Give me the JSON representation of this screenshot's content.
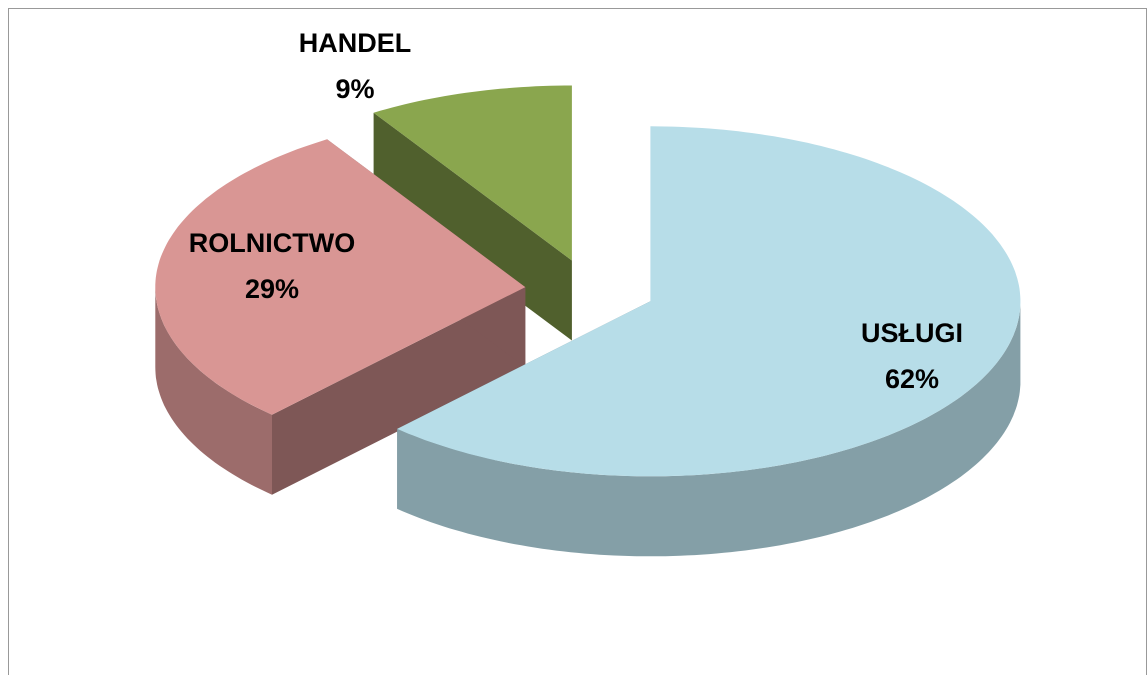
{
  "chart_data": {
    "type": "pie3d",
    "categories": [
      "USŁUGI",
      "ROLNICTWO",
      "HANDEL"
    ],
    "values": [
      62,
      29,
      9
    ],
    "value_labels": [
      "62%",
      "29%",
      "9%"
    ],
    "colors": [
      "#b7dde8",
      "#d99694",
      "#8aa64e"
    ],
    "exploded": true
  }
}
